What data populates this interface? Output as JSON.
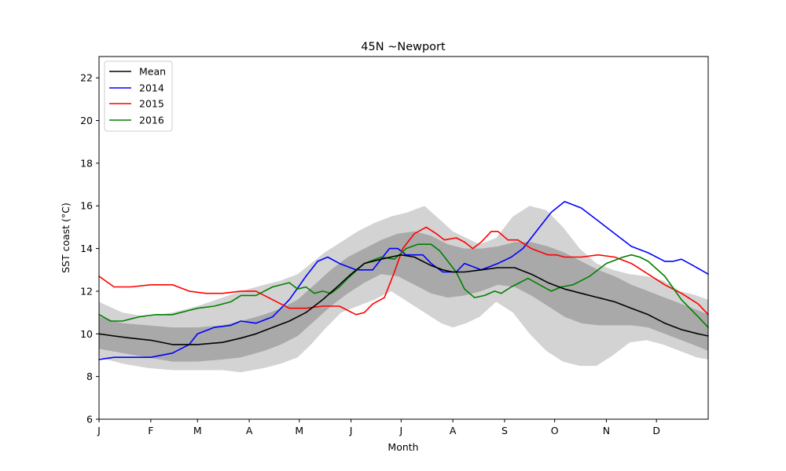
{
  "chart_data": {
    "type": "line",
    "title": "45N ~Newport",
    "xlabel": "Month",
    "ylabel": "SST coast (°C)",
    "xlim": [
      1,
      366
    ],
    "ylim": [
      6,
      23
    ],
    "yticks": [
      6,
      8,
      10,
      12,
      14,
      16,
      18,
      20,
      22
    ],
    "xticks": [
      {
        "label": "J",
        "day": 1
      },
      {
        "label": "F",
        "day": 32
      },
      {
        "label": "M",
        "day": 60
      },
      {
        "label": "A",
        "day": 91
      },
      {
        "label": "M",
        "day": 121
      },
      {
        "label": "J",
        "day": 152
      },
      {
        "label": "J",
        "day": 182
      },
      {
        "label": "A",
        "day": 213
      },
      {
        "label": "S",
        "day": 244
      },
      {
        "label": "O",
        "day": 274
      },
      {
        "label": "N",
        "day": 305
      },
      {
        "label": "D",
        "day": 335
      }
    ],
    "legend_position": "top-left",
    "grid": false,
    "bands": {
      "outer": {
        "color": "#d3d3d3",
        "x": [
          1,
          15,
          30,
          45,
          60,
          75,
          86,
          100,
          110,
          120,
          128,
          136,
          146,
          156,
          166,
          176,
          186,
          196,
          206,
          213,
          221,
          229,
          239,
          249,
          259,
          269,
          279,
          289,
          299,
          309,
          319,
          329,
          339,
          349,
          359,
          366
        ],
        "upper": [
          11.5,
          11.0,
          10.8,
          11.0,
          11.3,
          11.7,
          12.0,
          12.3,
          12.5,
          12.8,
          13.3,
          13.8,
          14.3,
          14.8,
          15.2,
          15.5,
          15.7,
          16.0,
          15.3,
          14.8,
          14.5,
          14.2,
          14.5,
          15.5,
          16.0,
          15.8,
          15.0,
          14.0,
          13.3,
          13.0,
          12.8,
          12.7,
          12.5,
          12.0,
          11.8,
          11.6
        ],
        "lower": [
          8.9,
          8.6,
          8.4,
          8.3,
          8.3,
          8.3,
          8.2,
          8.4,
          8.6,
          8.9,
          9.5,
          10.2,
          11.0,
          11.3,
          11.6,
          12.0,
          11.5,
          11.0,
          10.5,
          10.3,
          10.5,
          10.8,
          11.5,
          11.0,
          10.0,
          9.2,
          8.7,
          8.5,
          8.5,
          9.0,
          9.6,
          9.7,
          9.5,
          9.2,
          8.9,
          8.8
        ]
      },
      "inner": {
        "color": "#a9a9a9",
        "x": [
          1,
          15,
          30,
          45,
          60,
          75,
          86,
          100,
          110,
          120,
          130,
          140,
          150,
          160,
          170,
          180,
          190,
          200,
          210,
          220,
          230,
          240,
          250,
          260,
          270,
          280,
          290,
          300,
          310,
          320,
          330,
          340,
          350,
          360,
          366
        ],
        "upper": [
          10.8,
          10.5,
          10.4,
          10.3,
          10.3,
          10.4,
          10.6,
          10.9,
          11.2,
          11.6,
          12.3,
          13.0,
          13.6,
          14.0,
          14.4,
          14.7,
          14.8,
          14.6,
          14.2,
          14.0,
          14.0,
          14.1,
          14.3,
          14.3,
          14.1,
          13.8,
          13.4,
          13.0,
          12.7,
          12.3,
          12.0,
          11.7,
          11.4,
          11.1,
          10.9
        ],
        "lower": [
          9.3,
          9.1,
          8.9,
          8.7,
          8.7,
          8.8,
          8.9,
          9.2,
          9.5,
          9.9,
          10.6,
          11.3,
          11.9,
          12.4,
          12.8,
          12.7,
          12.3,
          11.9,
          11.7,
          11.8,
          12.0,
          12.3,
          12.2,
          11.8,
          11.3,
          10.8,
          10.5,
          10.4,
          10.4,
          10.4,
          10.3,
          10.0,
          9.7,
          9.4,
          9.2
        ]
      }
    },
    "series": [
      {
        "name": "Mean",
        "color": "#000000",
        "x": [
          1,
          10,
          20,
          32,
          45,
          60,
          75,
          86,
          95,
          105,
          115,
          125,
          135,
          145,
          152,
          160,
          170,
          182,
          190,
          200,
          207,
          213,
          220,
          230,
          240,
          250,
          260,
          270,
          280,
          290,
          300,
          310,
          320,
          330,
          340,
          350,
          360,
          366
        ],
        "y": [
          10.0,
          9.9,
          9.8,
          9.7,
          9.5,
          9.5,
          9.6,
          9.8,
          10.0,
          10.3,
          10.6,
          11.0,
          11.6,
          12.3,
          12.8,
          13.3,
          13.5,
          13.7,
          13.6,
          13.2,
          13.0,
          12.9,
          12.9,
          13.0,
          13.1,
          13.1,
          12.8,
          12.4,
          12.1,
          11.9,
          11.7,
          11.5,
          11.2,
          10.9,
          10.5,
          10.2,
          10.0,
          9.9
        ]
      },
      {
        "name": "2014",
        "color": "#0000ff",
        "x": [
          1,
          10,
          20,
          32,
          45,
          55,
          60,
          70,
          80,
          86,
          95,
          105,
          115,
          125,
          132,
          138,
          145,
          155,
          165,
          170,
          175,
          180,
          185,
          190,
          195,
          200,
          207,
          215,
          220,
          230,
          240,
          248,
          255,
          265,
          272,
          280,
          290,
          300,
          310,
          320,
          330,
          340,
          345,
          350,
          357,
          366
        ],
        "y": [
          8.8,
          8.9,
          8.9,
          8.9,
          9.1,
          9.5,
          10.0,
          10.3,
          10.4,
          10.6,
          10.5,
          10.8,
          11.6,
          12.7,
          13.4,
          13.6,
          13.3,
          13.0,
          13.0,
          13.5,
          14.0,
          14.0,
          13.7,
          13.7,
          13.7,
          13.3,
          12.9,
          12.9,
          13.3,
          13.0,
          13.3,
          13.6,
          14.0,
          15.0,
          15.7,
          16.2,
          15.9,
          15.3,
          14.7,
          14.1,
          13.8,
          13.4,
          13.4,
          13.5,
          13.2,
          12.8
        ]
      },
      {
        "name": "2015",
        "color": "#ff0000",
        "x": [
          1,
          10,
          20,
          32,
          45,
          55,
          65,
          75,
          86,
          95,
          105,
          115,
          125,
          135,
          145,
          150,
          155,
          160,
          165,
          172,
          178,
          183,
          190,
          197,
          203,
          208,
          215,
          220,
          225,
          230,
          236,
          240,
          246,
          252,
          260,
          270,
          275,
          280,
          290,
          300,
          310,
          320,
          330,
          340,
          350,
          360,
          366
        ],
        "y": [
          12.7,
          12.2,
          12.2,
          12.3,
          12.3,
          12.0,
          11.9,
          11.9,
          12.0,
          12.0,
          11.6,
          11.2,
          11.2,
          11.3,
          11.3,
          11.1,
          10.9,
          11.0,
          11.4,
          11.7,
          12.9,
          14.0,
          14.7,
          15.0,
          14.7,
          14.4,
          14.5,
          14.3,
          14.0,
          14.3,
          14.8,
          14.8,
          14.4,
          14.4,
          14.0,
          13.7,
          13.7,
          13.6,
          13.6,
          13.7,
          13.6,
          13.3,
          12.8,
          12.3,
          11.9,
          11.4,
          10.9
        ]
      },
      {
        "name": "2016",
        "color": "#008000",
        "x": [
          1,
          8,
          15,
          25,
          35,
          45,
          55,
          60,
          70,
          80,
          86,
          95,
          100,
          105,
          115,
          120,
          125,
          130,
          135,
          140,
          145,
          150,
          160,
          170,
          178,
          185,
          192,
          200,
          205,
          210,
          215,
          220,
          226,
          232,
          238,
          242,
          248,
          253,
          258,
          265,
          272,
          278,
          285,
          295,
          305,
          315,
          320,
          325,
          330,
          340,
          350,
          360,
          366
        ],
        "y": [
          10.9,
          10.6,
          10.6,
          10.8,
          10.9,
          10.9,
          11.1,
          11.2,
          11.3,
          11.5,
          11.8,
          11.8,
          12.0,
          12.2,
          12.4,
          12.1,
          12.2,
          11.9,
          12.0,
          11.9,
          12.2,
          12.6,
          13.3,
          13.6,
          13.5,
          14.0,
          14.2,
          14.2,
          13.9,
          13.4,
          12.9,
          12.1,
          11.7,
          11.8,
          12.0,
          11.9,
          12.2,
          12.4,
          12.6,
          12.3,
          12.0,
          12.2,
          12.3,
          12.7,
          13.3,
          13.6,
          13.7,
          13.6,
          13.4,
          12.7,
          11.6,
          10.8,
          10.3
        ]
      }
    ]
  }
}
